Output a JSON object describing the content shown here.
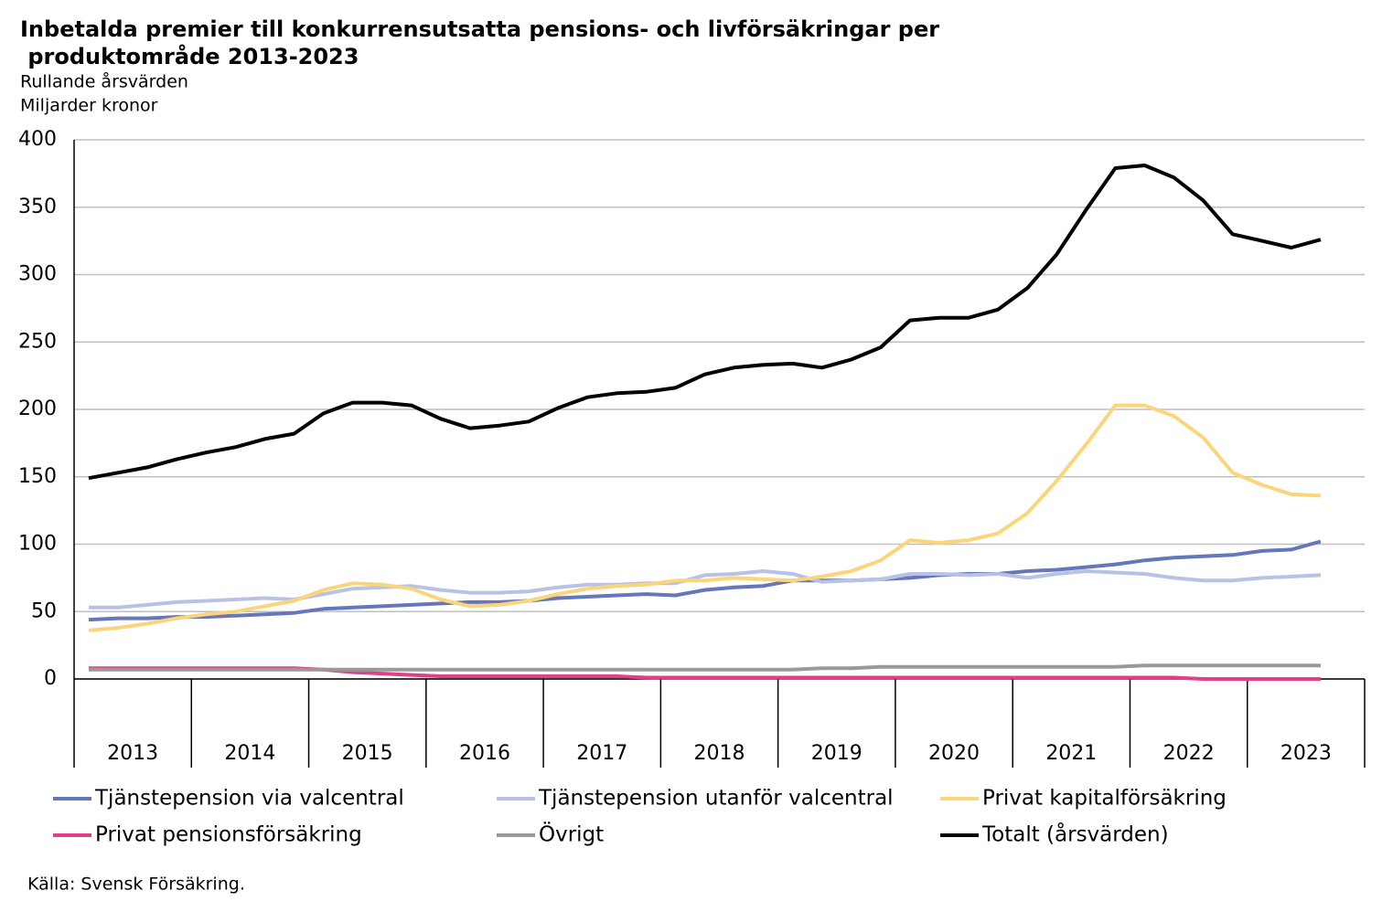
{
  "chart_data": {
    "type": "line",
    "title": "Inbetalda premier till konkurrensutsatta pensions- och livförsäkringar per produktområde 2013-2023",
    "subtitle": [
      "Rullande årsvärden",
      "Miljarder kronor"
    ],
    "source": "Källa: Svensk Försäkring.",
    "groups": [
      "2013",
      "2014",
      "2015",
      "2016",
      "2017",
      "2018",
      "2019",
      "2020",
      "2021",
      "2022",
      "2023"
    ],
    "categories": [
      null,
      null,
      null,
      null,
      null,
      null,
      null,
      null,
      null,
      null,
      null,
      null,
      null,
      null,
      null,
      null,
      null,
      null,
      null,
      null,
      null,
      null,
      null,
      null,
      null,
      null,
      null,
      null,
      null,
      null,
      null,
      null,
      null,
      null,
      null,
      null,
      null,
      null,
      null,
      null,
      null,
      null,
      null,
      null
    ],
    "ylim": [
      0,
      400
    ],
    "yticks": [
      0,
      50,
      100,
      150,
      200,
      250,
      300,
      350,
      400
    ],
    "grid": true,
    "series": [
      {
        "name": "Tjänstepension via valcentral",
        "color": "#6676bb",
        "values": [
          44,
          45,
          45,
          46,
          46,
          47,
          48,
          49,
          52,
          53,
          54,
          55,
          56,
          57,
          57,
          58,
          60,
          61,
          62,
          63,
          62,
          66,
          68,
          69,
          73,
          73,
          73,
          74,
          75,
          77,
          78,
          78,
          80,
          81,
          83,
          85,
          88,
          90,
          91,
          92,
          95,
          96,
          102,
          null
        ]
      },
      {
        "name": "Tjänstepension utanför valcentral",
        "color": "#b8c3e3",
        "values": [
          53,
          53,
          55,
          57,
          58,
          59,
          60,
          59,
          63,
          67,
          68,
          69,
          66,
          64,
          64,
          65,
          68,
          70,
          70,
          71,
          71,
          77,
          78,
          80,
          78,
          72,
          73,
          74,
          78,
          78,
          77,
          78,
          75,
          78,
          80,
          79,
          78,
          75,
          73,
          73,
          75,
          76,
          77,
          null
        ]
      },
      {
        "name": "Privat kapitalförsäkring",
        "color": "#fbd57a",
        "values": [
          36,
          38,
          41,
          45,
          48,
          50,
          54,
          58,
          66,
          71,
          70,
          67,
          59,
          54,
          55,
          58,
          63,
          67,
          69,
          70,
          73,
          73,
          75,
          74,
          73,
          76,
          80,
          88,
          103,
          101,
          103,
          108,
          123,
          147,
          174,
          203,
          203,
          195,
          179,
          153,
          144,
          137,
          136,
          null
        ]
      },
      {
        "name": "Privat pensionsförsäkring",
        "color": "#e0408a",
        "values": [
          8,
          8,
          8,
          8,
          8,
          8,
          8,
          8,
          7,
          5,
          4,
          3,
          2,
          2,
          2,
          2,
          2,
          2,
          2,
          1,
          1,
          1,
          1,
          1,
          1,
          1,
          1,
          1,
          1,
          1,
          1,
          1,
          1,
          1,
          1,
          1,
          1,
          1,
          0,
          0,
          0,
          0,
          0,
          null
        ]
      },
      {
        "name": "Övrigt",
        "color": "#999999",
        "values": [
          7,
          7,
          7,
          7,
          7,
          7,
          7,
          7,
          7,
          7,
          7,
          7,
          7,
          7,
          7,
          7,
          7,
          7,
          7,
          7,
          7,
          7,
          7,
          7,
          7,
          8,
          8,
          9,
          9,
          9,
          9,
          9,
          9,
          9,
          9,
          9,
          10,
          10,
          10,
          10,
          10,
          10,
          10,
          null
        ]
      },
      {
        "name": "Totalt (årsvärden)",
        "color": "#000000",
        "values": [
          149,
          153,
          157,
          163,
          168,
          172,
          178,
          182,
          197,
          205,
          205,
          203,
          193,
          186,
          188,
          191,
          201,
          209,
          212,
          213,
          216,
          226,
          231,
          233,
          234,
          231,
          237,
          246,
          266,
          268,
          268,
          274,
          290,
          315,
          348,
          379,
          381,
          372,
          355,
          330,
          325,
          320,
          326,
          null
        ]
      }
    ]
  }
}
